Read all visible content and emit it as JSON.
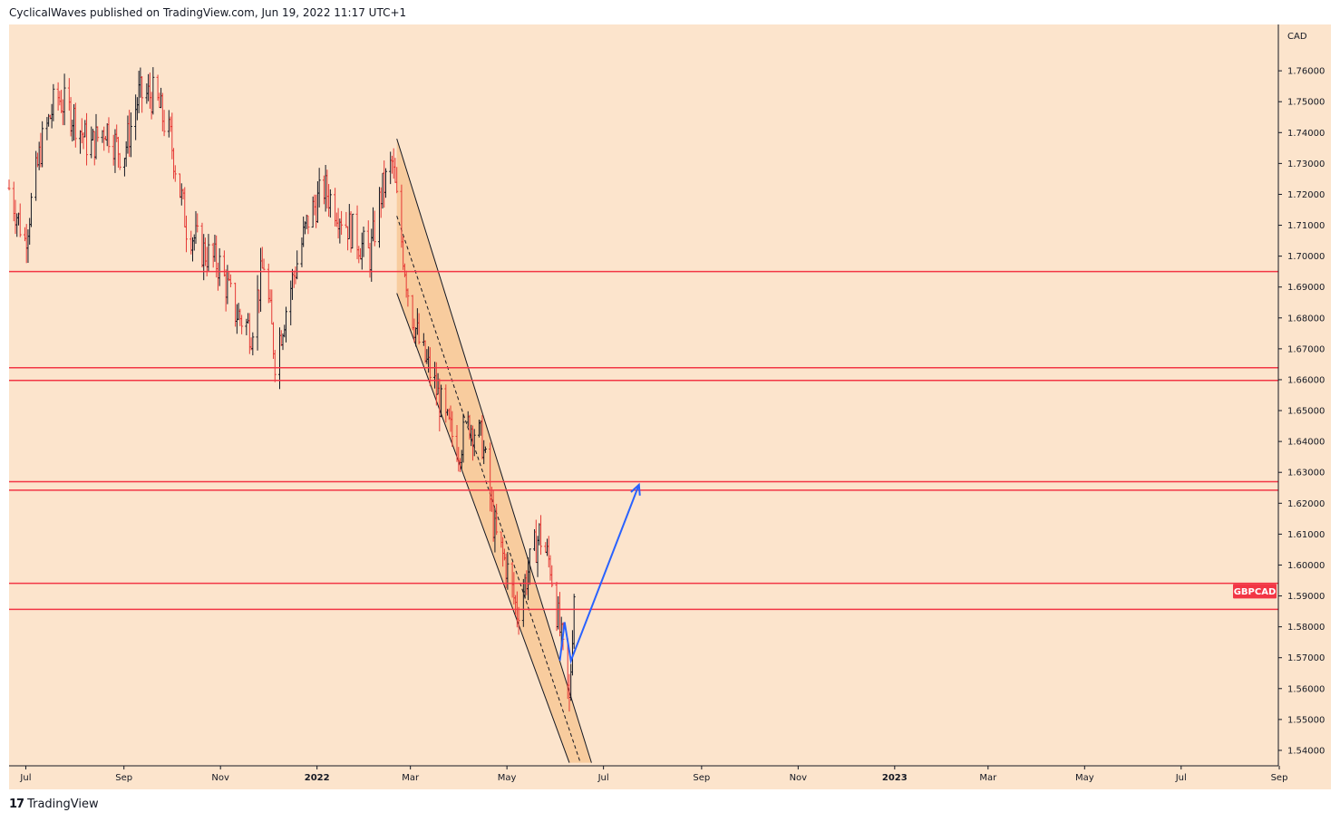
{
  "header": {
    "text": "CyclicalWaves published on TradingView.com, Jun 19, 2022 11:17 UTC+1"
  },
  "footer": {
    "brand": "TradingView",
    "logo_icon": "tradingview-logo-icon"
  },
  "colors": {
    "background": "#fce4cc",
    "bull": "#131722",
    "bear": "#e53935",
    "level": "#f23645",
    "channel": "#f7c48f",
    "projection": "#2962ff"
  },
  "chart_data": {
    "type": "candlestick",
    "symbol": "GBPCAD",
    "currency": "CAD",
    "ylim": [
      1.535,
      1.775
    ],
    "y_ticks": [
      "1.76000",
      "1.75000",
      "1.74000",
      "1.73000",
      "1.72000",
      "1.71000",
      "1.70000",
      "1.69000",
      "1.68000",
      "1.67000",
      "1.66000",
      "1.65000",
      "1.64000",
      "1.63000",
      "1.62000",
      "1.61000",
      "1.60000",
      "1.59000",
      "1.58000",
      "1.57000",
      "1.56000",
      "1.55000",
      "1.54000"
    ],
    "x_ticks": [
      {
        "label": "Jul",
        "bold": false
      },
      {
        "label": "Sep",
        "bold": false
      },
      {
        "label": "Nov",
        "bold": false
      },
      {
        "label": "2022",
        "bold": true
      },
      {
        "label": "Mar",
        "bold": false
      },
      {
        "label": "May",
        "bold": false
      },
      {
        "label": "Jul",
        "bold": false
      },
      {
        "label": "Sep",
        "bold": false
      },
      {
        "label": "Nov",
        "bold": false
      },
      {
        "label": "2023",
        "bold": true
      },
      {
        "label": "Mar",
        "bold": false
      },
      {
        "label": "May",
        "bold": false
      },
      {
        "label": "Jul",
        "bold": false
      },
      {
        "label": "Sep",
        "bold": false
      }
    ],
    "x_range": [
      "2021-06-25",
      "2023-09-05"
    ],
    "levels": [
      "1.69501",
      "1.66389",
      "1.65975",
      "1.62697",
      "1.62422",
      "1.59409",
      "1.58566"
    ],
    "symbol_label": "GBPCAD",
    "last_price": 1.5915,
    "price_path": [
      [
        "2021-06-25",
        1.722
      ],
      [
        "2021-07-05",
        1.705
      ],
      [
        "2021-07-15",
        1.735
      ],
      [
        "2021-07-25",
        1.752
      ],
      [
        "2021-08-05",
        1.745
      ],
      [
        "2021-08-15",
        1.735
      ],
      [
        "2021-08-25",
        1.742
      ],
      [
        "2021-09-05",
        1.732
      ],
      [
        "2021-09-15",
        1.752
      ],
      [
        "2021-09-25",
        1.752
      ],
      [
        "2021-10-05",
        1.738
      ],
      [
        "2021-10-15",
        1.71
      ],
      [
        "2021-10-25",
        1.702
      ],
      [
        "2021-11-05",
        1.697
      ],
      [
        "2021-11-15",
        1.682
      ],
      [
        "2021-11-25",
        1.676
      ],
      [
        "2021-12-03",
        1.698
      ],
      [
        "2021-12-10",
        1.667
      ],
      [
        "2021-12-20",
        1.69
      ],
      [
        "2021-12-31",
        1.712
      ],
      [
        "2022-01-10",
        1.722
      ],
      [
        "2022-01-20",
        1.714
      ],
      [
        "2022-01-30",
        1.706
      ],
      [
        "2022-02-08",
        1.7
      ],
      [
        "2022-02-15",
        1.72
      ],
      [
        "2022-02-22",
        1.73
      ],
      [
        "2022-02-28",
        1.705
      ],
      [
        "2022-03-05",
        1.685
      ],
      [
        "2022-03-12",
        1.67
      ],
      [
        "2022-03-20",
        1.66
      ],
      [
        "2022-03-28",
        1.646
      ],
      [
        "2022-04-05",
        1.638
      ],
      [
        "2022-04-12",
        1.646
      ],
      [
        "2022-04-20",
        1.64
      ],
      [
        "2022-04-28",
        1.61
      ],
      [
        "2022-05-05",
        1.6
      ],
      [
        "2022-05-12",
        1.585
      ],
      [
        "2022-05-20",
        1.6
      ],
      [
        "2022-05-26",
        1.61
      ],
      [
        "2022-06-02",
        1.6
      ],
      [
        "2022-06-09",
        1.575
      ],
      [
        "2022-06-14",
        1.555
      ],
      [
        "2022-06-17",
        1.5915
      ]
    ],
    "channel": [
      [
        "2022-02-25",
        1.738
      ],
      [
        "2022-06-28",
        1.536
      ],
      [
        "2022-06-14",
        1.536
      ],
      [
        "2022-02-25",
        1.688
      ]
    ],
    "channel_midline": [
      [
        "2022-02-25",
        1.713
      ],
      [
        "2022-06-21",
        1.536
      ]
    ],
    "projection": [
      [
        "2022-06-08",
        1.569
      ],
      [
        "2022-06-11",
        1.5815
      ],
      [
        "2022-06-15",
        1.569
      ],
      [
        "2022-07-28",
        1.626
      ]
    ]
  }
}
